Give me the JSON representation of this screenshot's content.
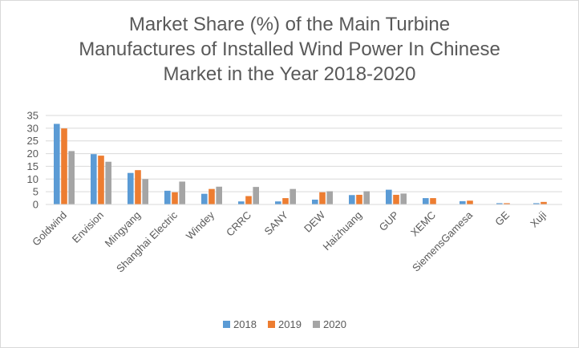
{
  "chart_data": {
    "type": "bar",
    "title": "Market Share (%) of the Main Turbine\nManufactures of Installed Wind Power In Chinese\nMarket in the Year 2018-2020",
    "xlabel": "",
    "ylabel": "",
    "ylim": [
      0,
      35
    ],
    "yticks": [
      "0",
      "5",
      "10",
      "15",
      "20",
      "25",
      "30",
      "35"
    ],
    "grid": true,
    "legend_position": "bottom",
    "categories": [
      "Goldwind",
      "Envision",
      "Mingyang",
      "Shanghai Electric",
      "Windey",
      "CRRC",
      "SANY",
      "DEW",
      "Haizhuang",
      "GUP",
      "XEMC",
      "SiemensGamesa",
      "GE",
      "Xuji"
    ],
    "series": [
      {
        "name": "2018",
        "color": "#5b9bd5",
        "values": [
          31.7,
          19.8,
          12.4,
          5.4,
          4.2,
          1.2,
          1.2,
          1.9,
          3.7,
          5.8,
          2.5,
          1.3,
          0.5,
          0.5
        ]
      },
      {
        "name": "2019",
        "color": "#ed7d31",
        "values": [
          29.9,
          19.2,
          13.5,
          4.8,
          6.1,
          3.3,
          2.5,
          4.8,
          3.8,
          3.8,
          2.5,
          1.5,
          0.5,
          1.0
        ]
      },
      {
        "name": "2020",
        "color": "#a5a5a5",
        "values": [
          21.0,
          16.8,
          10.0,
          9.0,
          7.0,
          6.9,
          6.1,
          5.2,
          5.2,
          4.3,
          0.0,
          0.0,
          0.0,
          0.0
        ]
      }
    ]
  }
}
